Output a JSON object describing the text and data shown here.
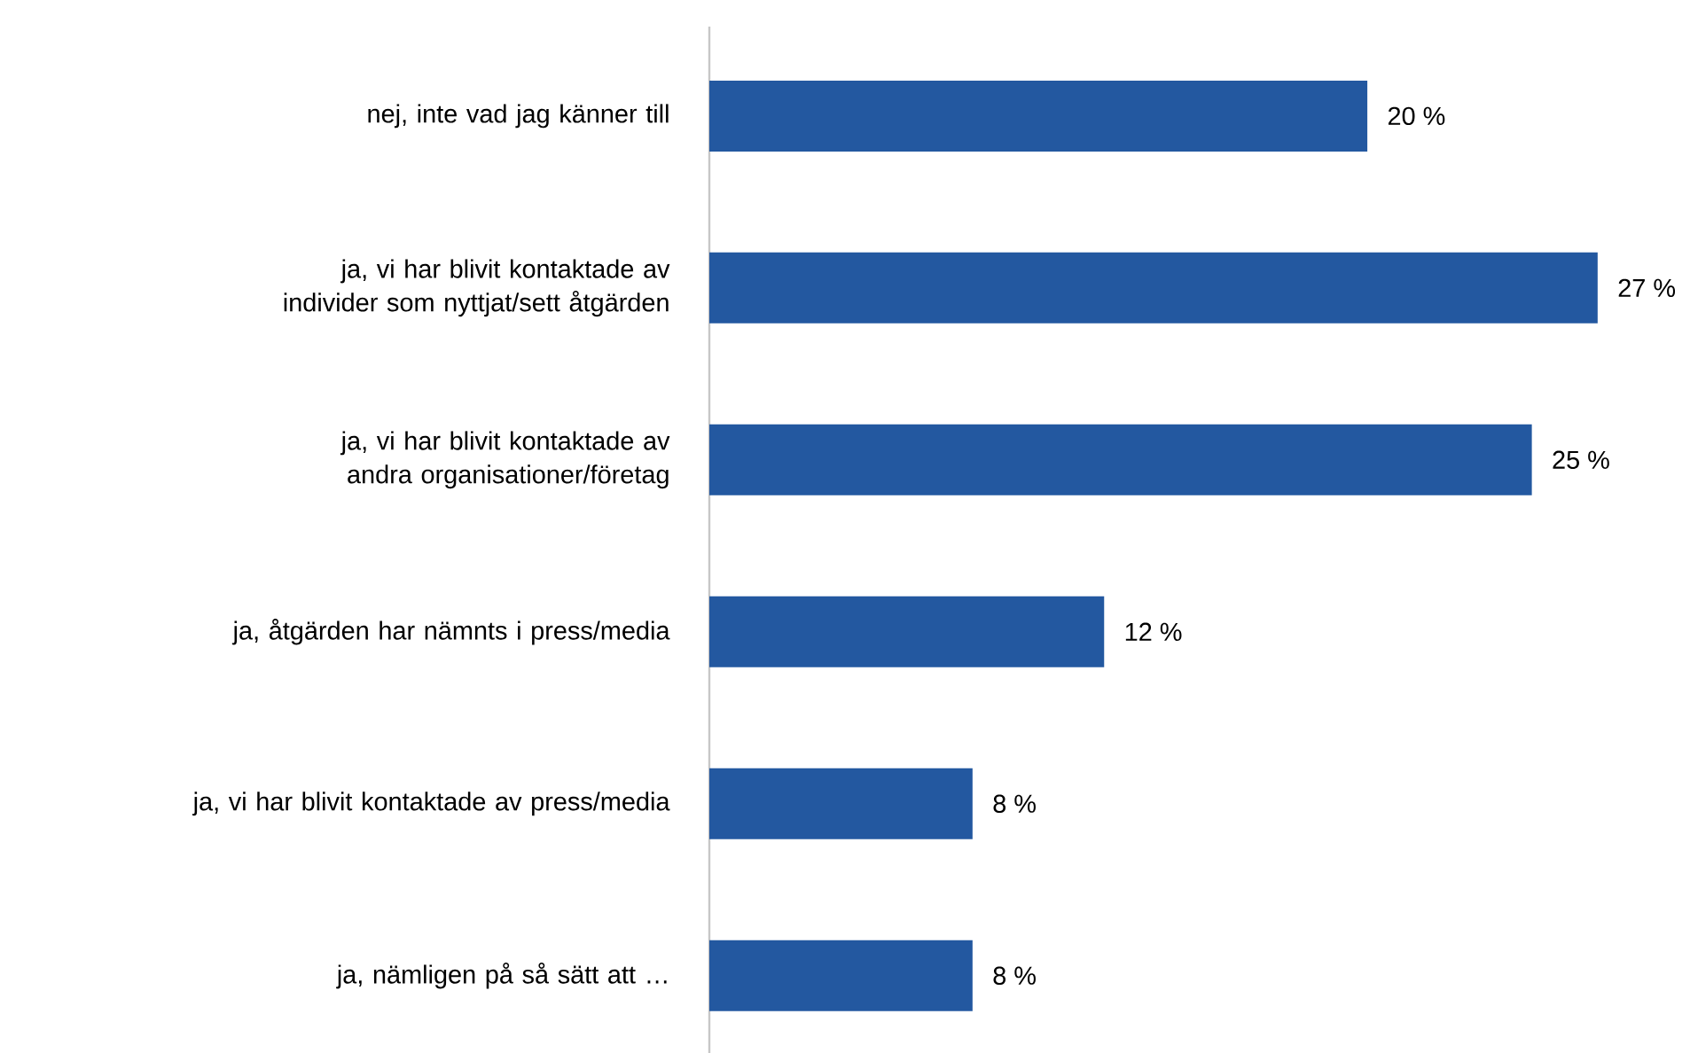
{
  "chart_data": {
    "type": "bar",
    "orientation": "horizontal",
    "categories": [
      "nej, inte vad jag känner till",
      "ja, vi har blivit kontaktade av individer som nyttjat/sett åtgärden",
      "ja, vi har blivit kontaktade av andra organisationer/företag",
      "ja, åtgärden har nämnts i press/media",
      "ja, vi har blivit kontaktade av press/media",
      "ja, nämligen på så sätt att …"
    ],
    "values": [
      20,
      27,
      25,
      12,
      8,
      8
    ],
    "value_labels": [
      "20 %",
      "27 %",
      "25 %",
      "12 %",
      "8 %",
      "8 %"
    ],
    "color": "#2358a0"
  }
}
